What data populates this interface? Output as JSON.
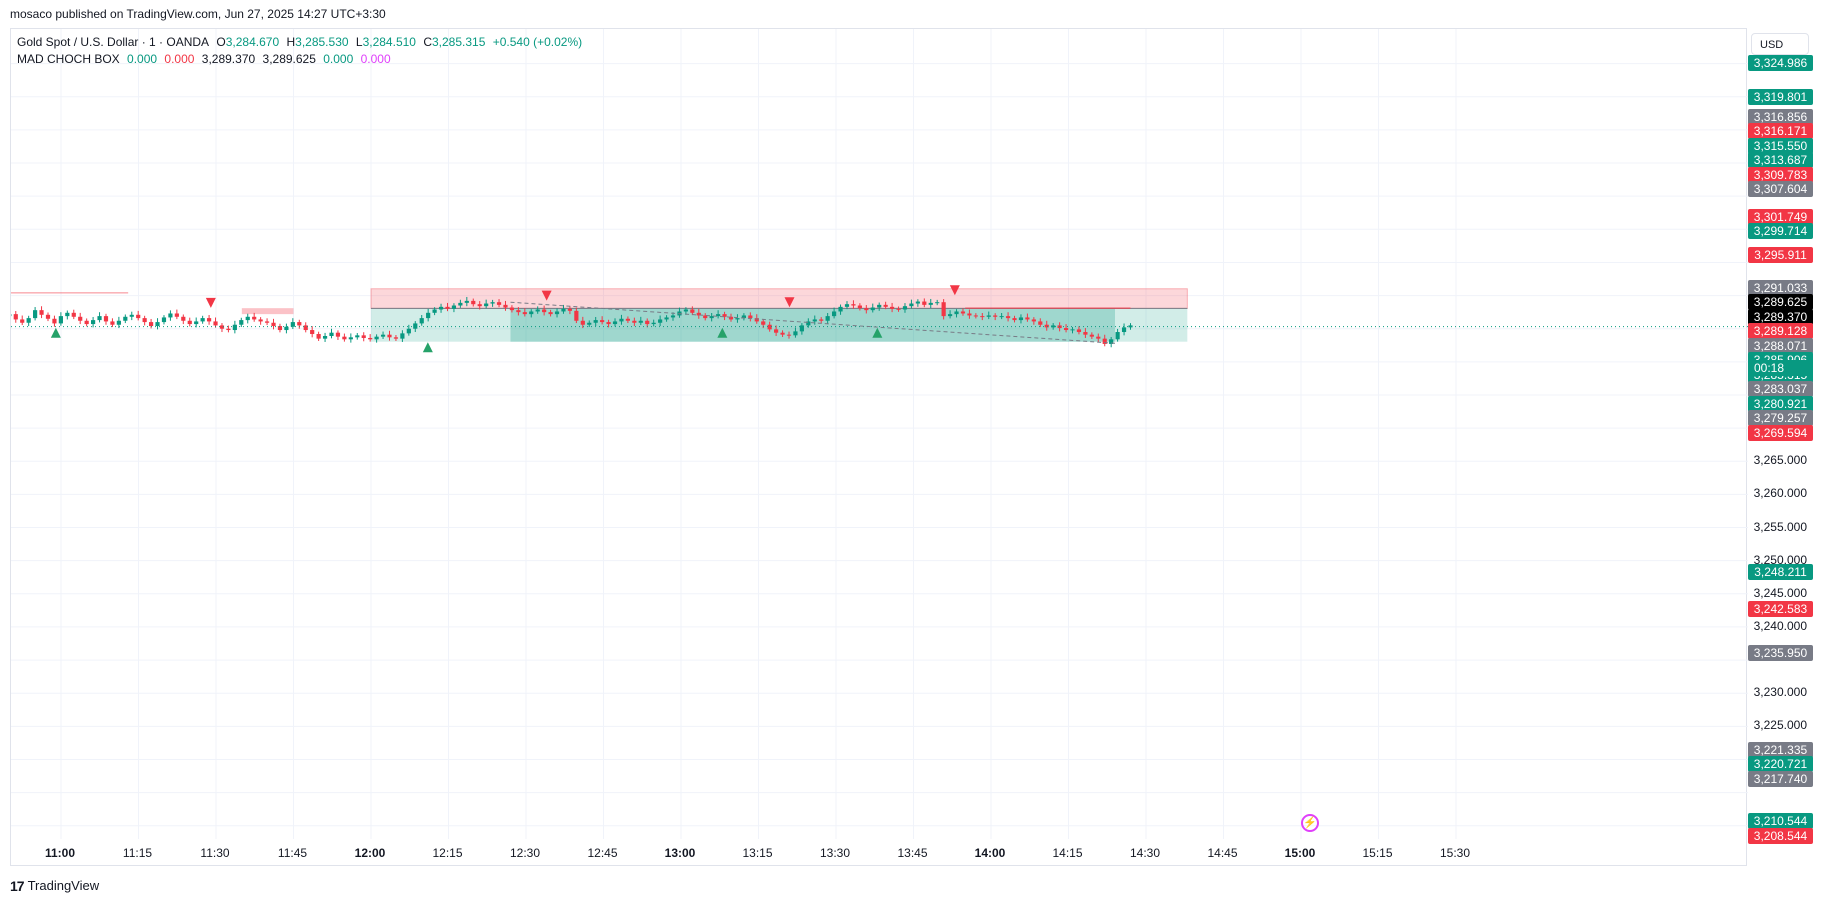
{
  "header": {
    "publisher_line": "mosaco published on TradingView.com, Jun 27, 2025 14:27 UTC+3:30"
  },
  "legend": {
    "symbol_line": "Gold Spot / U.S. Dollar · 1 · OANDA",
    "open_label": "O",
    "open": "3,284.670",
    "high_label": "H",
    "high": "3,285.530",
    "low_label": "L",
    "low": "3,284.510",
    "close_label": "C",
    "close": "3,285.315",
    "change": "+0.540 (+0.02%)",
    "indicator_name": "MAD CHOCH BOX",
    "indicator_values": [
      "0.000",
      "0.000",
      "3,289.370",
      "3,289.625",
      "0.000",
      "0.000"
    ]
  },
  "price_scale": {
    "currency": "USD",
    "countdown": "00:18",
    "ticks": [
      "3,265.000",
      "3,260.000",
      "3,255.000",
      "3,250.000",
      "3,245.000",
      "3,240.000",
      "3,230.000",
      "3,225.000"
    ],
    "badges": [
      {
        "text": "3,324.986",
        "color": "#089981"
      },
      {
        "text": "3,319.801",
        "color": "#089981"
      },
      {
        "text": "3,316.856",
        "color": "#787b86"
      },
      {
        "text": "3,316.171",
        "color": "#f23645"
      },
      {
        "text": "3,315.550",
        "color": "#089981"
      },
      {
        "text": "3,313.687",
        "color": "#089981"
      },
      {
        "text": "3,309.783",
        "color": "#f23645"
      },
      {
        "text": "3,307.604",
        "color": "#787b86"
      },
      {
        "text": "3,301.749",
        "color": "#f23645"
      },
      {
        "text": "3,299.714",
        "color": "#089981"
      },
      {
        "text": "3,295.911",
        "color": "#f23645"
      },
      {
        "text": "3,291.033",
        "color": "#787b86"
      },
      {
        "text": "3,289.625",
        "color": "#000000"
      },
      {
        "text": "3,289.370",
        "color": "#000000"
      },
      {
        "text": "3,289.128",
        "color": "#f23645"
      },
      {
        "text": "3,288.071",
        "color": "#787b86"
      },
      {
        "text": "3,285.906",
        "color": "#089981"
      },
      {
        "text": "3,285.315",
        "color": "#089981"
      },
      {
        "text": "3,283.037",
        "color": "#787b86"
      },
      {
        "text": "3,280.921",
        "color": "#089981"
      },
      {
        "text": "3,279.257",
        "color": "#787b86"
      },
      {
        "text": "3,269.594",
        "color": "#f23645"
      },
      {
        "text": "3,248.211",
        "color": "#089981"
      },
      {
        "text": "3,242.583",
        "color": "#f23645"
      },
      {
        "text": "3,235.950",
        "color": "#787b86"
      },
      {
        "text": "3,221.335",
        "color": "#787b86"
      },
      {
        "text": "3,220.721",
        "color": "#089981"
      },
      {
        "text": "3,217.740",
        "color": "#787b86"
      },
      {
        "text": "3,210.544",
        "color": "#089981"
      },
      {
        "text": "3,208.544",
        "color": "#f23645"
      }
    ]
  },
  "time_axis": [
    {
      "label": "11:00",
      "major": true
    },
    {
      "label": "11:15",
      "major": false
    },
    {
      "label": "11:30",
      "major": false
    },
    {
      "label": "11:45",
      "major": false
    },
    {
      "label": "12:00",
      "major": true
    },
    {
      "label": "12:15",
      "major": false
    },
    {
      "label": "12:30",
      "major": false
    },
    {
      "label": "12:45",
      "major": false
    },
    {
      "label": "13:00",
      "major": true
    },
    {
      "label": "13:15",
      "major": false
    },
    {
      "label": "13:30",
      "major": false
    },
    {
      "label": "13:45",
      "major": false
    },
    {
      "label": "14:00",
      "major": true
    },
    {
      "label": "14:15",
      "major": false
    },
    {
      "label": "14:30",
      "major": false
    },
    {
      "label": "14:45",
      "major": false
    },
    {
      "label": "15:00",
      "major": true
    },
    {
      "label": "15:15",
      "major": false
    },
    {
      "label": "15:30",
      "major": false
    }
  ],
  "footer": {
    "logo_glyph": "17",
    "brand": "TradingView"
  },
  "colors": {
    "up": "#089981",
    "down": "#f23645",
    "grid": "#f0f3fa",
    "demand_zone": "#089981",
    "supply_zone": "#f23645"
  },
  "chart_data": {
    "type": "candlestick",
    "symbol": "Gold Spot / U.S. Dollar",
    "interval": "1",
    "x_start": "10:50",
    "x_end": "14:27",
    "close_series": [
      3287.2,
      3286.4,
      3285.9,
      3286.6,
      3287.8,
      3287.1,
      3286.5,
      3285.8,
      3286.9,
      3287.4,
      3286.8,
      3286.2,
      3285.7,
      3286.3,
      3286.9,
      3286.1,
      3285.6,
      3286.2,
      3286.8,
      3287.1,
      3286.6,
      3286.0,
      3285.4,
      3286.0,
      3286.7,
      3287.3,
      3286.8,
      3286.2,
      3285.7,
      3286.1,
      3286.6,
      3286.1,
      3285.5,
      3285.0,
      3284.8,
      3285.6,
      3286.3,
      3286.8,
      3286.4,
      3286.1,
      3285.9,
      3285.4,
      3284.8,
      3285.3,
      3286.0,
      3285.5,
      3284.8,
      3284.2,
      3283.5,
      3283.9,
      3284.4,
      3283.8,
      3283.4,
      3283.7,
      3284.0,
      3283.6,
      3283.4,
      3283.8,
      3284.1,
      3283.7,
      3283.5,
      3284.3,
      3285.0,
      3285.8,
      3286.6,
      3287.4,
      3287.9,
      3288.3,
      3288.0,
      3288.5,
      3288.9,
      3289.2,
      3288.7,
      3288.4,
      3288.8,
      3289.0,
      3288.6,
      3288.2,
      3287.8,
      3287.5,
      3287.2,
      3287.6,
      3287.9,
      3287.5,
      3287.2,
      3287.6,
      3288.0,
      3287.7,
      3286.2,
      3285.6,
      3285.9,
      3286.3,
      3286.0,
      3285.7,
      3286.1,
      3286.5,
      3286.2,
      3285.9,
      3286.2,
      3285.7,
      3285.9,
      3286.4,
      3286.7,
      3287.0,
      3287.6,
      3287.9,
      3287.4,
      3287.0,
      3286.6,
      3286.9,
      3287.2,
      3286.8,
      3286.4,
      3286.6,
      3287.0,
      3286.6,
      3286.1,
      3285.6,
      3284.9,
      3284.4,
      3284.1,
      3284.0,
      3284.6,
      3285.5,
      3286.1,
      3286.4,
      3286.2,
      3286.9,
      3287.6,
      3288.3,
      3288.7,
      3288.5,
      3288.1,
      3287.8,
      3288.2,
      3288.6,
      3288.3,
      3288.0,
      3287.9,
      3288.4,
      3288.8,
      3289.1,
      3288.6,
      3288.9,
      3289.0,
      3286.9,
      3287.2,
      3287.6,
      3287.3,
      3287.0,
      3286.9,
      3286.8,
      3287.0,
      3286.8,
      3286.9,
      3286.6,
      3286.3,
      3286.7,
      3286.4,
      3286.1,
      3285.6,
      3285.2,
      3285.5,
      3285.1,
      3284.8,
      3284.9,
      3284.5,
      3284.1,
      3283.8,
      3283.5,
      3282.7,
      3283.4,
      3284.5,
      3285.2,
      3285.5
    ],
    "demand_zone": {
      "from": "12:00",
      "to": "14:38",
      "top": 3288.07,
      "bottom": 3283.04
    },
    "supply_zone": {
      "from": "12:00",
      "to": "14:38",
      "top": 3291.03,
      "bottom": 3288.07
    },
    "last_price": 3285.315,
    "y_range": [
      3208.0,
      3326.0
    ]
  }
}
